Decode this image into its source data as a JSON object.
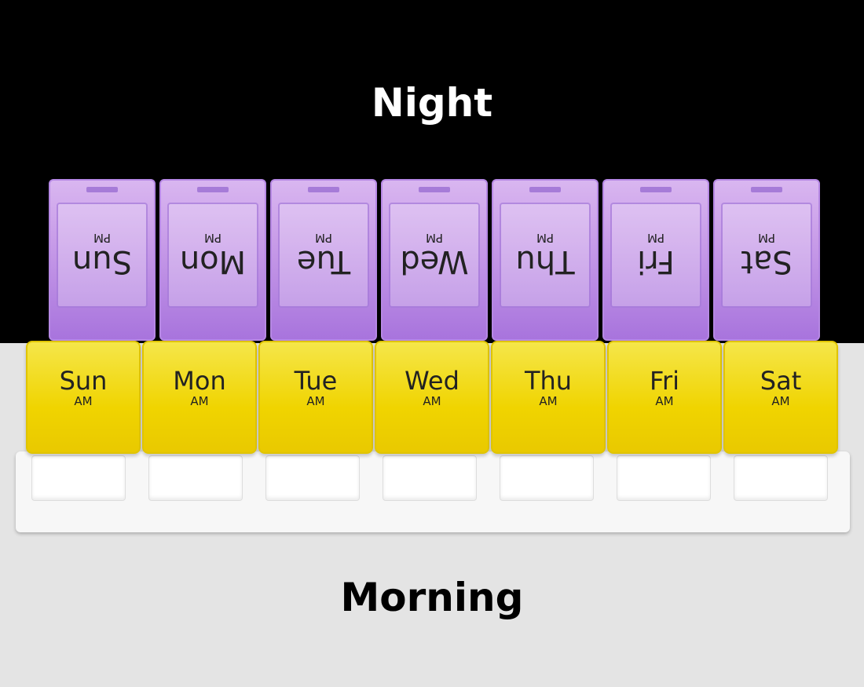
{
  "labels": {
    "top": "Night",
    "bottom": "Morning"
  },
  "colors": {
    "night_bg": "#000000",
    "morning_bg": "#e4e4e4",
    "pm_lid": "#c79be8",
    "am_lid": "#f0d400"
  },
  "pm_label": "PM",
  "am_label": "AM",
  "days": [
    "Sun",
    "Mon",
    "Tue",
    "Wed",
    "Thu",
    "Fri",
    "Sat"
  ]
}
